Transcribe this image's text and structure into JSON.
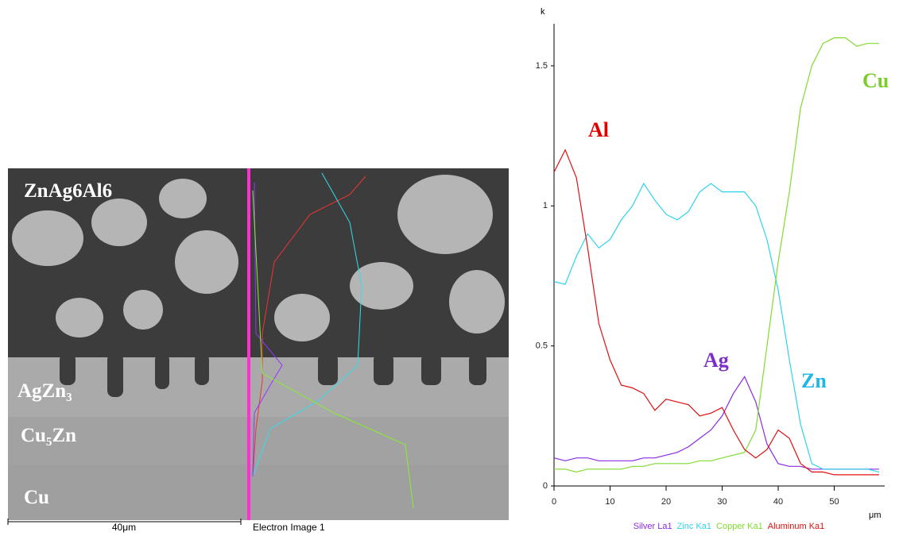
{
  "image": {
    "labels": [
      "ZnAg6Al6",
      "AgZn₃",
      "Cu₅Zn",
      "Cu"
    ],
    "scale_bar": "40μm",
    "caption": "Electron Image 1"
  },
  "chart_data": {
    "type": "line",
    "y_label": "k",
    "x_label": "μm",
    "x": [
      0,
      2,
      4,
      6,
      8,
      10,
      12,
      14,
      16,
      18,
      20,
      22,
      24,
      26,
      28,
      30,
      32,
      34,
      36,
      38,
      40,
      42,
      44,
      46,
      48,
      50,
      52,
      54,
      56,
      58
    ],
    "xlim": [
      0,
      59
    ],
    "xticks": [
      0,
      10,
      20,
      30,
      40,
      50
    ],
    "ylim": [
      0,
      1.65
    ],
    "yticks": [
      0,
      0.5,
      1,
      1.5
    ],
    "series": [
      {
        "name": "Silver La1",
        "color": "#8a2be2",
        "values": [
          0.1,
          0.09,
          0.1,
          0.1,
          0.09,
          0.09,
          0.09,
          0.09,
          0.1,
          0.1,
          0.11,
          0.12,
          0.14,
          0.17,
          0.2,
          0.25,
          0.33,
          0.39,
          0.3,
          0.15,
          0.08,
          0.07,
          0.07,
          0.06,
          0.06,
          0.06,
          0.06,
          0.06,
          0.06,
          0.06
        ]
      },
      {
        "name": "Zinc Ka1",
        "color": "#2fd3ef",
        "values": [
          0.73,
          0.72,
          0.82,
          0.9,
          0.85,
          0.88,
          0.95,
          1.0,
          1.08,
          1.02,
          0.97,
          0.95,
          0.98,
          1.05,
          1.08,
          1.05,
          1.05,
          1.05,
          1.0,
          0.88,
          0.7,
          0.45,
          0.22,
          0.08,
          0.06,
          0.06,
          0.06,
          0.06,
          0.06,
          0.05
        ]
      },
      {
        "name": "Copper Ka1",
        "color": "#7fdc2f",
        "values": [
          0.06,
          0.06,
          0.05,
          0.06,
          0.06,
          0.06,
          0.06,
          0.07,
          0.07,
          0.08,
          0.08,
          0.08,
          0.08,
          0.09,
          0.09,
          0.1,
          0.11,
          0.12,
          0.2,
          0.5,
          0.8,
          1.05,
          1.35,
          1.5,
          1.58,
          1.6,
          1.6,
          1.57,
          1.58,
          1.58
        ]
      },
      {
        "name": "Aluminum Ka1",
        "color": "#e01010",
        "values": [
          1.12,
          1.2,
          1.1,
          0.85,
          0.58,
          0.45,
          0.36,
          0.35,
          0.33,
          0.27,
          0.31,
          0.3,
          0.29,
          0.25,
          0.26,
          0.28,
          0.2,
          0.13,
          0.1,
          0.13,
          0.2,
          0.17,
          0.08,
          0.05,
          0.05,
          0.04,
          0.04,
          0.04,
          0.04,
          0.04
        ]
      }
    ],
    "annotations": [
      {
        "text": "Al",
        "color": "#e00000"
      },
      {
        "text": "Ag",
        "color": "#7b2fc9"
      },
      {
        "text": "Cu",
        "color": "#7ccc2c"
      },
      {
        "text": "Zn",
        "color": "#1fb8e6"
      }
    ]
  }
}
